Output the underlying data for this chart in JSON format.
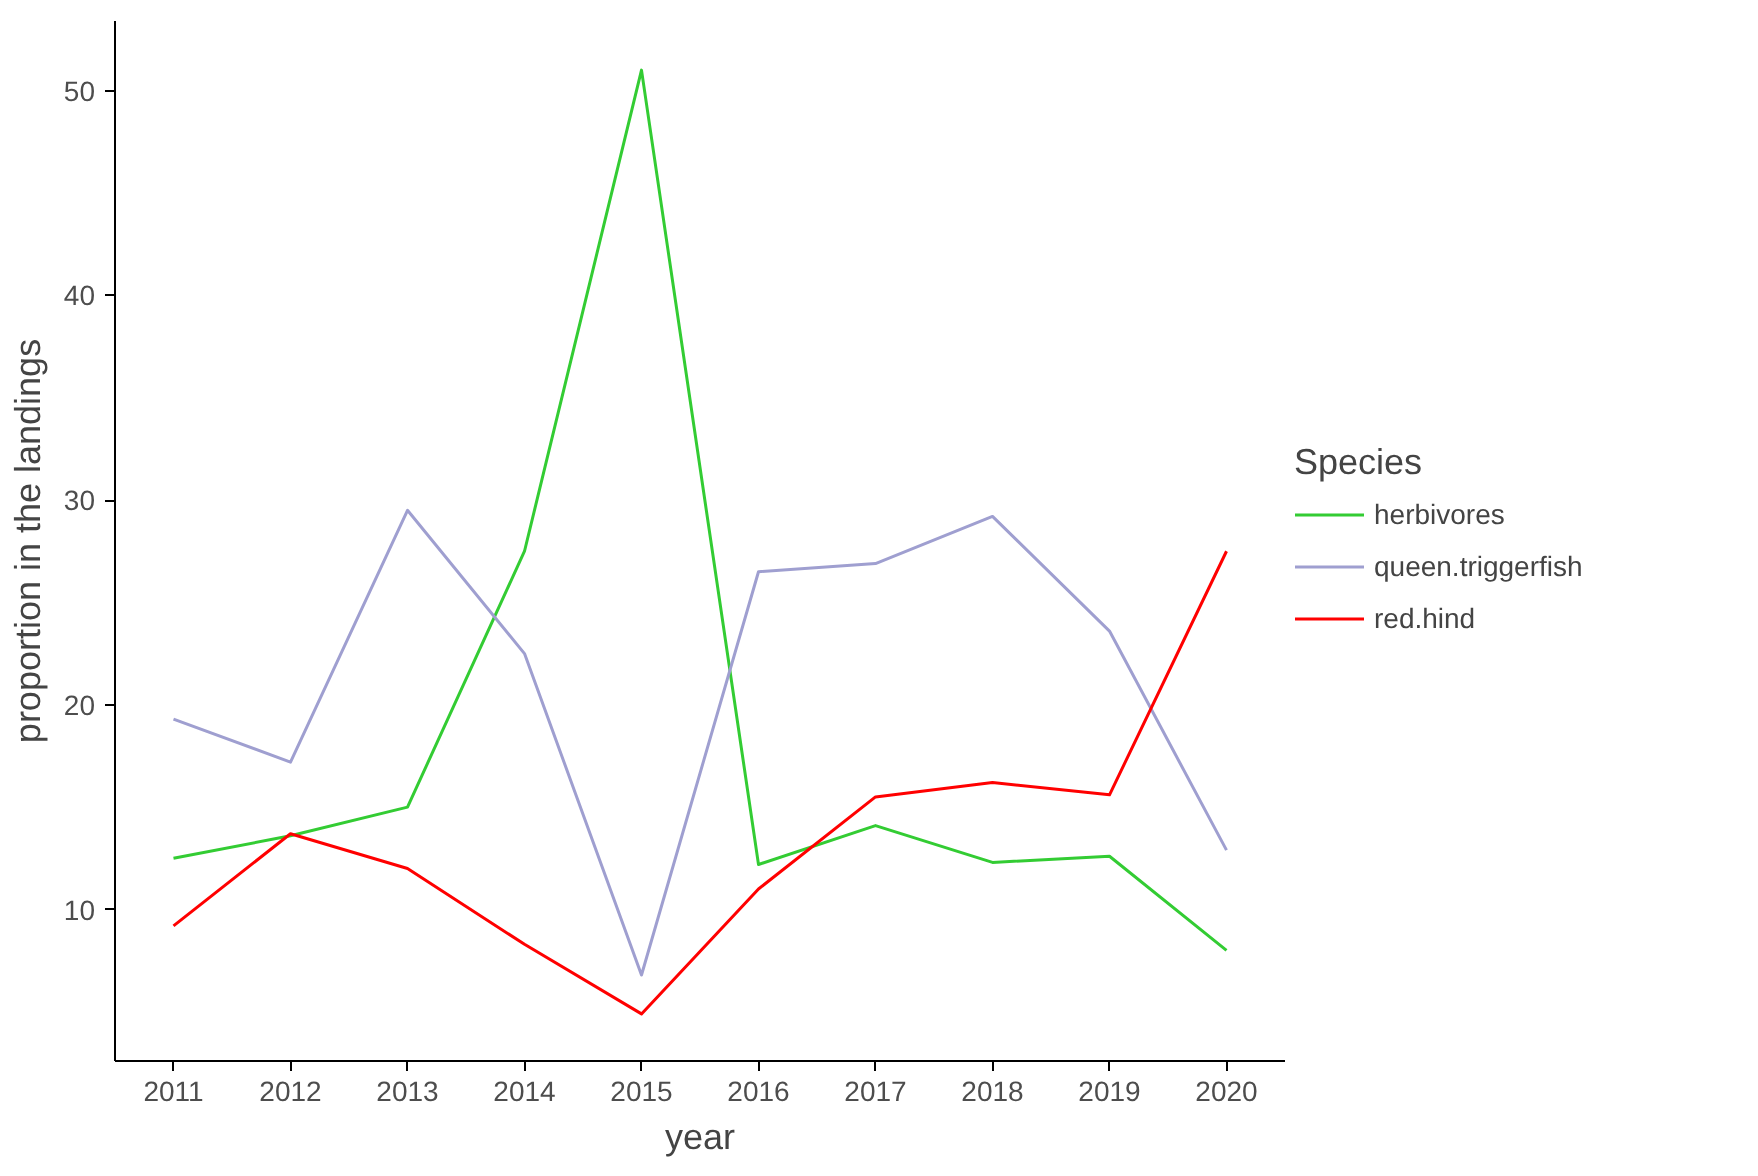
{
  "chart_data": {
    "type": "line",
    "xlabel": "year",
    "ylabel": "proportion in the landings",
    "legend_title": "Species",
    "legend": "right",
    "grid": false,
    "x": [
      2011,
      2012,
      2013,
      2014,
      2015,
      2016,
      2017,
      2018,
      2019,
      2020
    ],
    "xlim": [
      2010.5,
      2020.5
    ],
    "xticks": [
      2011,
      2012,
      2013,
      2014,
      2015,
      2016,
      2017,
      2018,
      2019,
      2020
    ],
    "ylim": [
      2.6,
      53.4
    ],
    "yticks": [
      10,
      20,
      30,
      40,
      50
    ],
    "series": [
      {
        "name": "herbivores",
        "color": "#33cc33",
        "values": [
          12.5,
          13.6,
          15.0,
          27.5,
          51.0,
          12.2,
          14.1,
          12.3,
          12.6,
          8.0
        ]
      },
      {
        "name": "queen.triggerfish",
        "color": "#9f9fd0",
        "values": [
          19.3,
          17.2,
          29.5,
          22.5,
          6.8,
          26.5,
          26.9,
          29.2,
          23.6,
          12.9
        ]
      },
      {
        "name": "red.hind",
        "color": "#ff0000",
        "values": [
          9.2,
          13.7,
          12.0,
          8.3,
          4.9,
          11.0,
          15.5,
          16.2,
          15.6,
          27.5
        ]
      }
    ]
  }
}
